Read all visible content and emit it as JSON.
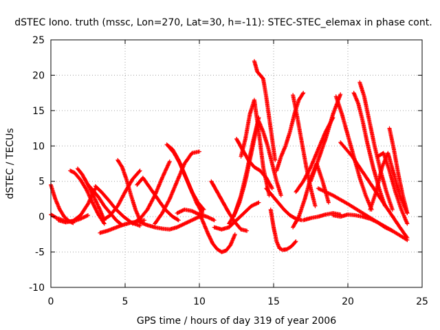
{
  "chart_data": {
    "type": "scatter",
    "title": "dSTEC Iono. truth (mssc, Lon=270, Lat=30, h=-11): STEC-STEC_elemax in phase cont.",
    "xlabel": "GPS time / hours of day 319 of year 2006",
    "ylabel": "dSTEC  / TECUs",
    "xlim": [
      0,
      25
    ],
    "ylim": [
      -10,
      25
    ],
    "x_ticks": [
      0,
      5,
      10,
      15,
      20,
      25
    ],
    "y_ticks": [
      -10,
      -5,
      0,
      5,
      10,
      15,
      20,
      25
    ],
    "x_tick_labels": [
      "0",
      "5",
      "10",
      "15",
      "20",
      "25"
    ],
    "y_tick_labels": [
      "-10",
      "-5",
      "0",
      "5",
      "10",
      "15",
      "20",
      "25"
    ],
    "grid": true,
    "marker": "plus",
    "color": "#ff0000",
    "series": [
      {
        "x": [
          0.0,
          0.3,
          0.6,
          0.9,
          1.2,
          1.5
        ],
        "y": [
          4.5,
          2.5,
          1.0,
          0.0,
          -0.6,
          -0.9
        ]
      },
      {
        "x": [
          0.0,
          0.4,
          0.8,
          1.2,
          1.6,
          2.0,
          2.5
        ],
        "y": [
          0.3,
          -0.2,
          -0.5,
          -0.7,
          -0.6,
          -0.3,
          0.2
        ]
      },
      {
        "x": [
          1.3,
          1.6,
          2.0,
          2.4,
          2.8,
          3.2,
          3.6
        ],
        "y": [
          6.5,
          6.2,
          5.2,
          3.8,
          2.0,
          0.3,
          -1.0
        ]
      },
      {
        "x": [
          1.8,
          2.1,
          2.5,
          2.9,
          3.3,
          3.6
        ],
        "y": [
          6.8,
          6.0,
          4.5,
          2.8,
          1.0,
          -0.5
        ]
      },
      {
        "x": [
          0.5,
          1.0,
          1.5,
          2.0,
          2.5,
          3.0
        ],
        "y": [
          -0.5,
          -0.8,
          -0.6,
          0.2,
          1.8,
          4.0
        ]
      },
      {
        "x": [
          2.5,
          2.8,
          3.2,
          3.6,
          4.0,
          4.4,
          4.8
        ],
        "y": [
          4.5,
          3.8,
          2.8,
          1.5,
          0.5,
          -0.5,
          -1.2
        ]
      },
      {
        "x": [
          3.0,
          3.4,
          3.9,
          4.4,
          4.9,
          5.4,
          6.0
        ],
        "y": [
          4.3,
          3.5,
          2.3,
          1.0,
          0.0,
          -0.8,
          -1.3
        ]
      },
      {
        "x": [
          3.3,
          3.8,
          4.3,
          4.8,
          5.3,
          5.8,
          6.3
        ],
        "y": [
          -2.3,
          -2.0,
          -1.6,
          -1.2,
          -0.9,
          -0.7,
          -0.5
        ]
      },
      {
        "x": [
          4.5,
          4.8,
          5.1,
          5.4,
          5.7,
          6.0
        ],
        "y": [
          8.0,
          7.0,
          5.2,
          3.0,
          1.0,
          -0.5
        ]
      },
      {
        "x": [
          3.5,
          4.0,
          4.5,
          5.0,
          5.5,
          6.0
        ],
        "y": [
          -0.5,
          0.2,
          1.5,
          3.5,
          5.3,
          6.5
        ]
      },
      {
        "x": [
          5.5,
          6.0,
          6.5,
          7.0,
          7.5,
          8.0
        ],
        "y": [
          -1.0,
          -0.3,
          1.0,
          3.0,
          5.5,
          7.8
        ]
      },
      {
        "x": [
          5.8,
          6.2,
          6.7,
          7.2,
          7.7,
          8.2,
          8.6
        ],
        "y": [
          4.5,
          5.5,
          4.0,
          2.5,
          1.0,
          0.0,
          -0.5
        ]
      },
      {
        "x": [
          6.0,
          6.5,
          7.0,
          7.5,
          8.0,
          8.5,
          9.0,
          9.5,
          10.0
        ],
        "y": [
          -0.8,
          -1.2,
          -1.5,
          -1.7,
          -1.8,
          -1.5,
          -1.0,
          -0.5,
          0.0
        ]
      },
      {
        "x": [
          7.8,
          8.2,
          8.6,
          9.0,
          9.4,
          9.8,
          10.2
        ],
        "y": [
          10.2,
          9.5,
          8.0,
          6.0,
          4.0,
          2.0,
          0.5
        ]
      },
      {
        "x": [
          7.9,
          8.3,
          8.7,
          9.1,
          9.5,
          9.9,
          10.3
        ],
        "y": [
          10.0,
          9.0,
          7.5,
          5.5,
          3.5,
          2.0,
          1.0
        ]
      },
      {
        "x": [
          7.0,
          7.5,
          8.0,
          8.5,
          9.0,
          9.5,
          10.0
        ],
        "y": [
          -1.0,
          0.5,
          2.5,
          5.0,
          7.5,
          9.0,
          9.2
        ]
      },
      {
        "x": [
          8.5,
          9.0,
          9.5,
          10.0,
          10.5,
          11.0
        ],
        "y": [
          0.5,
          1.0,
          0.8,
          0.3,
          0.0,
          -0.5
        ]
      },
      {
        "x": [
          10.0,
          10.3,
          10.6,
          10.9,
          11.2,
          11.5,
          11.8,
          12.1,
          12.4
        ],
        "y": [
          0.5,
          -1.0,
          -2.5,
          -3.8,
          -4.6,
          -5.0,
          -4.8,
          -4.0,
          -2.5
        ]
      },
      {
        "x": [
          10.8,
          11.2,
          11.6,
          12.0,
          12.4,
          12.8,
          13.2
        ],
        "y": [
          5.0,
          3.5,
          2.0,
          0.5,
          -0.8,
          -1.8,
          -2.0
        ]
      },
      {
        "x": [
          11.0,
          11.5,
          12.0,
          12.5,
          13.0,
          13.5,
          14.0
        ],
        "y": [
          -1.5,
          -1.8,
          -1.5,
          -0.5,
          0.5,
          1.5,
          2.0
        ]
      },
      {
        "x": [
          12.0,
          12.4,
          12.8,
          13.2,
          13.6,
          14.0
        ],
        "y": [
          -1.0,
          0.5,
          3.0,
          6.5,
          10.5,
          14.0
        ]
      },
      {
        "x": [
          12.3,
          12.7,
          13.1,
          13.5,
          13.9
        ],
        "y": [
          0.0,
          2.0,
          5.0,
          9.0,
          13.0
        ]
      },
      {
        "x": [
          12.5,
          12.9,
          13.3,
          13.7,
          14.1,
          14.5,
          14.9
        ],
        "y": [
          11.0,
          9.5,
          8.0,
          7.0,
          6.5,
          5.5,
          4.0
        ]
      },
      {
        "x": [
          12.8,
          13.1,
          13.4,
          13.7,
          14.0,
          14.3,
          14.7
        ],
        "y": [
          8.5,
          11.0,
          14.5,
          16.5,
          12.0,
          7.0,
          3.0
        ]
      },
      {
        "x": [
          13.7,
          13.9,
          14.1,
          14.3,
          14.5,
          14.7,
          14.9,
          15.1
        ],
        "y": [
          22.0,
          20.5,
          20.0,
          19.5,
          17.0,
          14.0,
          11.0,
          8.0
        ]
      },
      {
        "x": [
          14.0,
          14.3,
          14.6,
          14.9,
          15.2,
          15.5
        ],
        "y": [
          13.5,
          12.0,
          10.0,
          7.5,
          5.0,
          3.0
        ]
      },
      {
        "x": [
          14.8,
          15.0,
          15.2,
          15.4,
          15.6,
          15.9,
          16.2,
          16.5
        ],
        "y": [
          1.0,
          -1.5,
          -3.5,
          -4.5,
          -4.7,
          -4.6,
          -4.2,
          -3.5
        ]
      },
      {
        "x": [
          14.5,
          14.9,
          15.3,
          15.7,
          16.1,
          16.5,
          16.9
        ],
        "y": [
          4.0,
          3.0,
          2.0,
          1.0,
          0.2,
          -0.3,
          -0.5
        ]
      },
      {
        "x": [
          15.2,
          15.5,
          15.8,
          16.1,
          16.4,
          16.7,
          17.0
        ],
        "y": [
          6.5,
          8.5,
          10.0,
          12.0,
          14.5,
          16.5,
          17.5
        ]
      },
      {
        "x": [
          16.3,
          16.6,
          16.9,
          17.2,
          17.5,
          17.8
        ],
        "y": [
          17.2,
          14.0,
          10.5,
          7.0,
          4.0,
          1.5
        ]
      },
      {
        "x": [
          16.3,
          16.7,
          17.1,
          17.5,
          17.9,
          18.3,
          18.7
        ],
        "y": [
          -1.5,
          0.0,
          2.5,
          5.5,
          7.5,
          5.0,
          2.0
        ]
      },
      {
        "x": [
          17.0,
          17.5,
          18.0,
          18.5,
          19.0,
          19.5
        ],
        "y": [
          -0.5,
          -0.2,
          0.0,
          0.3,
          0.5,
          0.3
        ]
      },
      {
        "x": [
          17.5,
          18.0,
          18.5,
          19.0,
          19.5
        ],
        "y": [
          5.0,
          8.0,
          11.0,
          14.5,
          17.3
        ]
      },
      {
        "x": [
          19.2,
          19.6,
          20.0,
          20.4,
          20.8,
          21.2,
          21.6
        ],
        "y": [
          17.0,
          14.5,
          11.5,
          8.5,
          5.5,
          3.0,
          1.0
        ]
      },
      {
        "x": [
          19.0,
          19.5,
          20.0,
          20.5,
          21.0,
          21.5,
          22.0,
          22.5,
          23.0
        ],
        "y": [
          0.2,
          0.0,
          0.3,
          0.2,
          0.0,
          -0.3,
          -0.8,
          -1.5,
          -2.0
        ]
      },
      {
        "x": [
          20.4,
          20.7,
          21.0,
          21.3,
          21.7,
          22.1,
          22.5
        ],
        "y": [
          17.5,
          16.0,
          13.5,
          10.5,
          7.0,
          4.0,
          1.5
        ]
      },
      {
        "x": [
          20.8,
          21.1,
          21.4,
          21.8,
          22.2,
          22.6,
          23.0
        ],
        "y": [
          19.0,
          17.0,
          14.0,
          10.0,
          6.5,
          3.5,
          1.0
        ]
      },
      {
        "x": [
          21.5,
          21.9,
          22.3,
          22.7,
          23.1,
          23.5,
          24.0
        ],
        "y": [
          1.0,
          3.5,
          7.0,
          9.0,
          6.0,
          3.0,
          0.5
        ]
      },
      {
        "x": [
          22.0,
          22.4,
          22.8,
          23.2,
          23.6,
          24.0
        ],
        "y": [
          8.5,
          9.0,
          6.5,
          3.5,
          1.0,
          -1.0
        ]
      },
      {
        "x": [
          22.8,
          23.1,
          23.4,
          23.7,
          24.0
        ],
        "y": [
          12.5,
          9.5,
          6.0,
          3.0,
          0.5
        ]
      },
      {
        "x": [
          19.5,
          20.3,
          21.1,
          21.9,
          22.7,
          23.5,
          24.0
        ],
        "y": [
          10.5,
          8.5,
          6.0,
          3.5,
          1.0,
          -1.5,
          -3.0
        ]
      },
      {
        "x": [
          18.0,
          19.0,
          20.0,
          21.0,
          22.0,
          23.0,
          24.0
        ],
        "y": [
          4.0,
          3.0,
          1.8,
          0.5,
          -0.8,
          -2.0,
          -3.3
        ]
      },
      {
        "x": [
          16.5,
          17.0,
          17.5,
          18.0,
          18.5,
          19.0
        ],
        "y": [
          3.5,
          5.0,
          7.0,
          9.5,
          12.0,
          14.0
        ]
      }
    ]
  }
}
